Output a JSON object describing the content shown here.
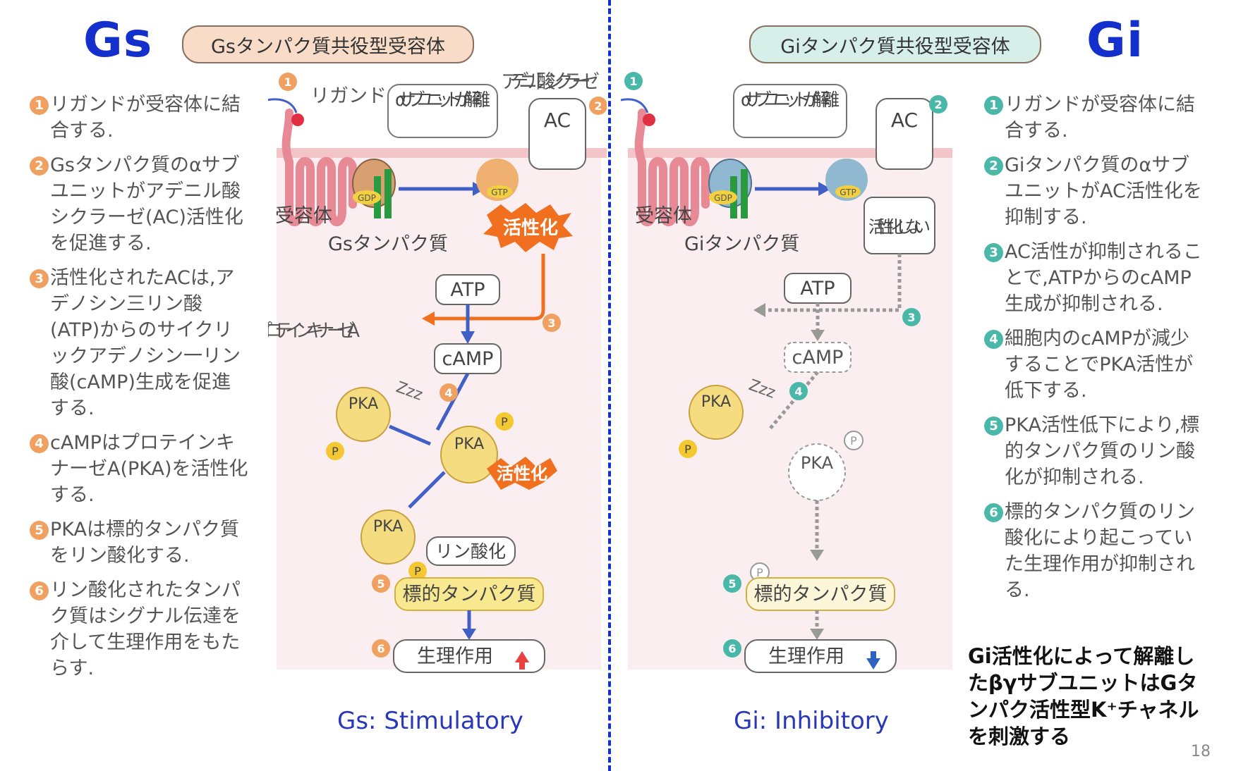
{
  "gs": {
    "heading": "Gs",
    "receptor_title": "Gsタンパク質共役型受容体",
    "caption": "Gs: Stimulatory",
    "steps": [
      "リガンドが受容体に結合する.",
      "Gsタンパク質のαサブユニットがアデニル酸シクラーゼ(AC)活性化を促進する.",
      "活性化されたACは,アデノシン三リン酸(ATP)からのサイクリックアデノシン一リン酸(cAMP)生成を促進する.",
      "cAMPはプロテインキナーゼA(PKA)を活性化する.",
      "PKAは標的タンパク質をリン酸化する.",
      "リン酸化されたタンパク質はシグナル伝達を介して生理作用をもたらす."
    ],
    "diagram": {
      "adenylate": "アデニル酸シクラーゼ",
      "ligand": "リガンド",
      "alpha_dissociate": "αサブユニットが解離",
      "ac": "AC",
      "receptor": "受容体",
      "g_protein": "Gsタンパク質",
      "activation": "活性化",
      "atp": "ATP",
      "camp": "cAMP",
      "protein_kinase": "プロテインキナーゼA",
      "pka": "PKA",
      "p": "P",
      "zzz": "Zzz",
      "phosphorylation": "リン酸化",
      "target": "標的タンパク質",
      "physiology": "生理作用",
      "gdp": "GDP",
      "gtp": "GTP"
    }
  },
  "gi": {
    "heading": "Gi",
    "receptor_title": "Giタンパク質共役型受容体",
    "caption": "Gi: Inhibitory",
    "steps": [
      "リガンドが受容体に結合する.",
      "Giタンパク質のαサブユニットがAC活性化を抑制する.",
      "AC活性が抑制されることで,ATPからのcAMP生成が抑制される.",
      "細胞内のcAMPが減少することでPKA活性が低下する.",
      "PKA活性低下により,標的タンパク質のリン酸化が抑制される.",
      "標的タンパク質のリン酸化により起こっていた生理作用が抑制される."
    ],
    "diagram": {
      "alpha_dissociate": "αサブユニットが解離",
      "ac": "AC",
      "receptor": "受容体",
      "g_protein": "Giタンパク質",
      "no_activation": "活性化しない",
      "atp": "ATP",
      "camp": "cAMP",
      "pka": "PKA",
      "p": "P",
      "zzz": "Zzz",
      "target": "標的タンパク質",
      "physiology": "生理作用",
      "gdp": "GDP",
      "gtp": "GTP"
    },
    "note": "Gi活性化によって解離したβγサブユニットはGタンパク活性型K⁺チャネルを刺激する"
  },
  "page_number": "18",
  "colors": {
    "heading": "#1330cc",
    "divider": "#1330cc",
    "activation": "#f07020",
    "arrow": "#4060c8"
  }
}
